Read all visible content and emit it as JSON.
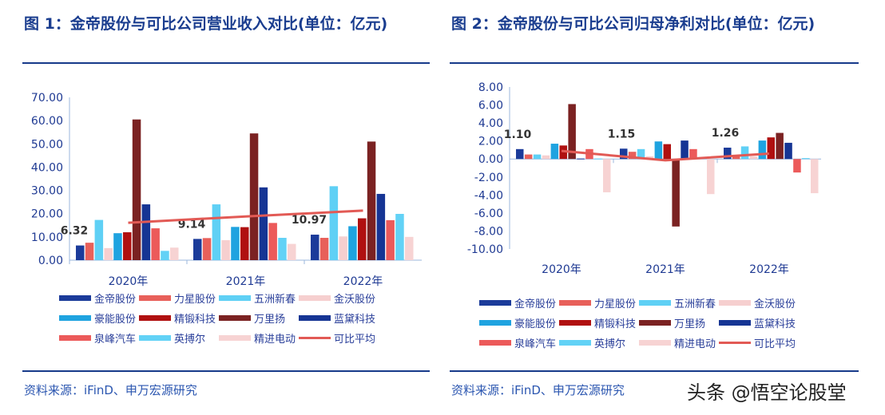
{
  "charts_titles": [
    "图 1：金帝股份与可比公司营业收入对比(单位：亿元)",
    "图 2：金帝股份与可比公司归母净利对比(单位：亿元)"
  ],
  "source": "资料来源：iFinD、申万宏源研究",
  "watermark": "头条 @悟空论股堂",
  "chart_data": [
    {
      "type": "bar",
      "title": "图 1：金帝股份与可比公司营业收入对比(单位：亿元)",
      "categories": [
        "2020年",
        "2021年",
        "2022年"
      ],
      "ylim": [
        0,
        70
      ],
      "yticks": [
        "0.00",
        "10.00",
        "20.00",
        "30.00",
        "40.00",
        "50.00",
        "60.00",
        "70.00"
      ],
      "legend_position": "bottom",
      "data_labels": [
        "6.32",
        "9.14",
        "10.97"
      ],
      "series": [
        {
          "name": "金帝股份",
          "color": "#1b3b9a",
          "values": [
            6.32,
            9.14,
            10.97
          ]
        },
        {
          "name": "力星股份",
          "color": "#e8605a",
          "values": [
            7.5,
            9.5,
            9.6
          ]
        },
        {
          "name": "五洲新春",
          "color": "#5fd0f5",
          "values": [
            17.3,
            24.0,
            31.8
          ]
        },
        {
          "name": "金沃股份",
          "color": "#f6cfcf",
          "values": [
            5.2,
            8.6,
            10.2
          ]
        },
        {
          "name": "豪能股份",
          "color": "#1fa3e0",
          "values": [
            11.6,
            14.3,
            14.6
          ]
        },
        {
          "name": "精锻科技",
          "color": "#b01010",
          "values": [
            12.0,
            14.2,
            18.0
          ]
        },
        {
          "name": "万里扬",
          "color": "#7b2222",
          "values": [
            60.5,
            54.5,
            51.0
          ]
        },
        {
          "name": "蓝黛科技",
          "color": "#163594",
          "values": [
            24.0,
            31.3,
            28.5
          ]
        },
        {
          "name": "泉峰汽车",
          "color": "#ec5a5a",
          "values": [
            13.7,
            16.0,
            17.2
          ]
        },
        {
          "name": "英搏尔",
          "color": "#62d2f6",
          "values": [
            4.0,
            9.6,
            19.9
          ]
        },
        {
          "name": "精进电动",
          "color": "#f7d3d3",
          "values": [
            5.4,
            7.0,
            10.0
          ]
        }
      ],
      "line": {
        "name": "可比平均",
        "color": "#e25a55",
        "values": [
          16.1,
          18.8,
          21.3
        ]
      }
    },
    {
      "type": "bar",
      "title": "图 2：金帝股份与可比公司归母净利对比(单位：亿元)",
      "categories": [
        "2020年",
        "2021年",
        "2022年"
      ],
      "ylim": [
        -10,
        8
      ],
      "yticks": [
        "-10.00",
        "-8.00",
        "-6.00",
        "-4.00",
        "-2.00",
        "0.00",
        "2.00",
        "4.00",
        "6.00",
        "8.00"
      ],
      "legend_position": "bottom",
      "data_labels": [
        "1.10",
        "1.15",
        "1.26"
      ],
      "series": [
        {
          "name": "金帝股份",
          "color": "#1b3b9a",
          "values": [
            1.1,
            1.15,
            1.26
          ]
        },
        {
          "name": "力星股份",
          "color": "#e8605a",
          "values": [
            0.5,
            0.8,
            0.3
          ]
        },
        {
          "name": "五洲新春",
          "color": "#5fd0f5",
          "values": [
            0.5,
            1.1,
            1.4
          ]
        },
        {
          "name": "金沃股份",
          "color": "#f6cfcf",
          "values": [
            0.4,
            0.3,
            0.3
          ]
        },
        {
          "name": "豪能股份",
          "color": "#1fa3e0",
          "values": [
            1.7,
            1.95,
            2.05
          ]
        },
        {
          "name": "精锻科技",
          "color": "#b01010",
          "values": [
            1.5,
            1.65,
            2.4
          ]
        },
        {
          "name": "万里扬",
          "color": "#7b2222",
          "values": [
            6.1,
            -7.5,
            2.9
          ]
        },
        {
          "name": "蓝黛科技",
          "color": "#163594",
          "values": [
            0.05,
            2.05,
            1.8
          ]
        },
        {
          "name": "泉峰汽车",
          "color": "#ec5a5a",
          "values": [
            1.1,
            1.1,
            -1.5
          ]
        },
        {
          "name": "英搏尔",
          "color": "#62d2f6",
          "values": [
            0.05,
            0.2,
            0.1
          ]
        },
        {
          "name": "精进电动",
          "color": "#f7d3d3",
          "values": [
            -3.7,
            -3.9,
            -3.8
          ]
        }
      ],
      "line": {
        "name": "可比平均",
        "color": "#e25a55",
        "values": [
          0.9,
          -0.15,
          0.6
        ]
      }
    }
  ]
}
